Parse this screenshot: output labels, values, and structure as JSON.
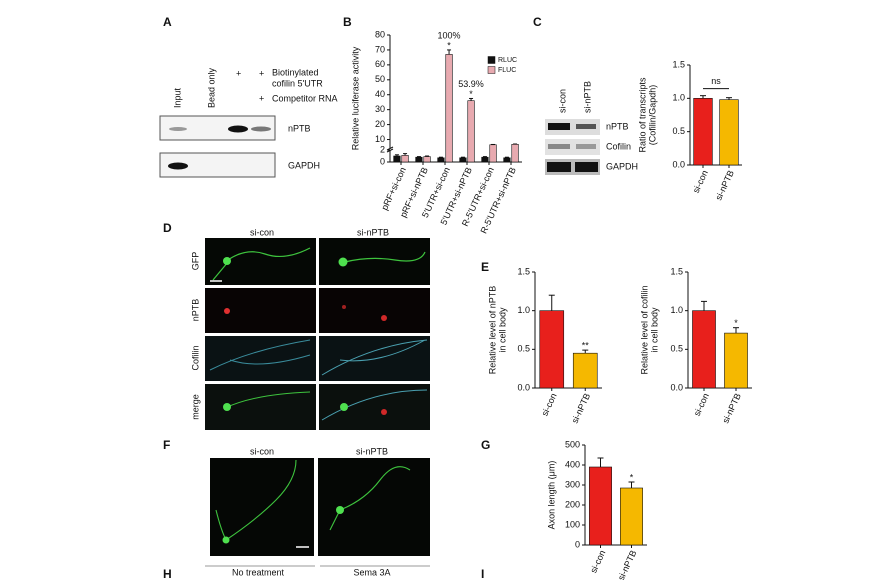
{
  "panel_letters": [
    "A",
    "B",
    "C",
    "D",
    "E",
    "F",
    "G",
    "H",
    "I"
  ],
  "panel_a": {
    "lanes": [
      "Input",
      "Bead only"
    ],
    "plus_marks": [
      "+",
      "+",
      "+"
    ],
    "probe": [
      "Biotinylated",
      "cofilin 5'UTR"
    ],
    "competitor": "Competitor RNA",
    "blots": [
      "nPTB",
      "GAPDH"
    ]
  },
  "panel_c_blot": {
    "lanes": [
      "si-con",
      "si-nPTB"
    ],
    "blots": [
      "nPTB",
      "Cofilin",
      "GAPDH"
    ]
  },
  "panel_d": {
    "columns": [
      "si-con",
      "si-nPTB"
    ],
    "rows": [
      "GFP",
      "nPTB",
      "Cofilin",
      "merge"
    ]
  },
  "panel_f": {
    "columns": [
      "si-con",
      "si-nPTB"
    ]
  },
  "panel_h": {
    "columns": [
      "No treatment",
      "Sema 3A"
    ]
  },
  "chart_data": [
    {
      "type": "grouped-bar",
      "ylabel": [
        "Relative luciferase activity"
      ],
      "categories": [
        "pRF+si-con",
        "pRF+si-nPTB",
        "5'UTR+si-con",
        "5'UTR+si-nPTB",
        "R-5'UTR+si-con",
        "R-5'UTR+si-nPTB"
      ],
      "series": [
        {
          "name": "RLUC",
          "color": "#111111",
          "values": [
            1.0,
            0.8,
            0.7,
            0.7,
            0.8,
            0.7
          ],
          "errors": [
            0.2,
            0.1,
            0.1,
            0.1,
            0.1,
            0.1
          ]
        },
        {
          "name": "FLUC",
          "color": "#e8aab0",
          "values": [
            1.1,
            0.9,
            67,
            36,
            6.5,
            6.8
          ],
          "errors": [
            0.3,
            0.1,
            3,
            1.5,
            0.2,
            0.2
          ],
          "stars": [
            null,
            null,
            "*",
            "*",
            null,
            null
          ],
          "labels": [
            null,
            null,
            "100%",
            "53.9%",
            null,
            null
          ]
        }
      ],
      "ylim": [
        0,
        80
      ],
      "ybreak": [
        2,
        5
      ],
      "yticks": [
        0,
        2,
        10,
        20,
        30,
        40,
        50,
        60,
        70,
        80
      ]
    },
    {
      "type": "bar",
      "ylabel": [
        "Ratio of transcripts",
        "(Cofilin/Gapdh)"
      ],
      "categories": [
        "si-con",
        "si-nPTB"
      ],
      "values": [
        1.0,
        0.98
      ],
      "errors": [
        0.04,
        0.03
      ],
      "colors": [
        "#e8201c",
        "#f5b800"
      ],
      "bracket": "ns",
      "ylim": [
        0,
        1.5
      ],
      "yticks": [
        {
          "value": 0,
          "label": "0.0"
        },
        {
          "value": 0.5,
          "label": "0.5"
        },
        {
          "value": 1,
          "label": "1.0"
        },
        {
          "value": 1.5,
          "label": "1.5"
        }
      ]
    },
    {
      "type": "bar",
      "ylabel": [
        "Relative level of nPTB",
        "in cell body"
      ],
      "categories": [
        "si-con",
        "si-nPTB"
      ],
      "values": [
        1.0,
        0.45
      ],
      "errors": [
        0.2,
        0.04
      ],
      "colors": [
        "#e8201c",
        "#f5b800"
      ],
      "stars": [
        null,
        "**"
      ],
      "ylim": [
        0,
        1.5
      ],
      "yticks": [
        {
          "value": 0,
          "label": "0.0"
        },
        {
          "value": 0.5,
          "label": "0.5"
        },
        {
          "value": 1,
          "label": "1.0"
        },
        {
          "value": 1.5,
          "label": "1.5"
        }
      ]
    },
    {
      "type": "bar",
      "ylabel": [
        "Relative level of cofilin",
        "in cell body"
      ],
      "categories": [
        "si-con",
        "si-nPTB"
      ],
      "values": [
        1.0,
        0.71
      ],
      "errors": [
        0.12,
        0.07
      ],
      "colors": [
        "#e8201c",
        "#f5b800"
      ],
      "stars": [
        null,
        "*"
      ],
      "ylim": [
        0,
        1.5
      ],
      "yticks": [
        {
          "value": 0,
          "label": "0.0"
        },
        {
          "value": 0.5,
          "label": "0.5"
        },
        {
          "value": 1,
          "label": "1.0"
        },
        {
          "value": 1.5,
          "label": "1.5"
        }
      ]
    },
    {
      "type": "bar",
      "ylabel": [
        "Axon length (μm)"
      ],
      "categories": [
        "si-con",
        "si-nPTB"
      ],
      "values": [
        390,
        285
      ],
      "errors": [
        45,
        30
      ],
      "colors": [
        "#e8201c",
        "#f5b800"
      ],
      "stars": [
        null,
        "*"
      ],
      "ylim": [
        0,
        500
      ],
      "yticks": [
        0,
        100,
        200,
        300,
        400,
        500
      ]
    }
  ]
}
